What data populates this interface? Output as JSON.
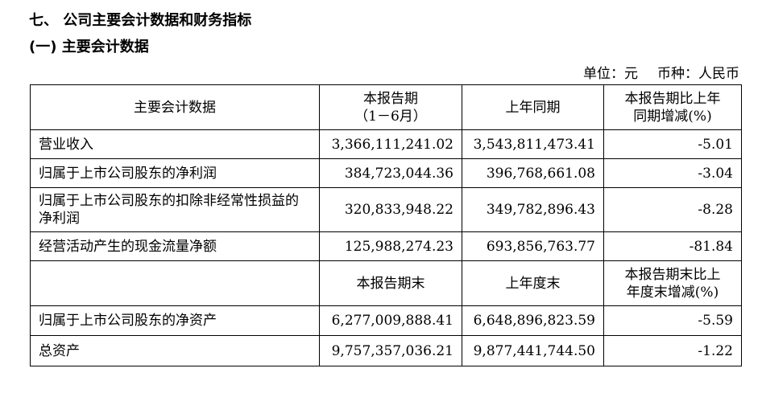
{
  "headings": {
    "section": "七、 公司主要会计数据和财务指标",
    "subsection": "(一) 主要会计数据"
  },
  "unit_line": {
    "unit": "单位：元",
    "currency": "币种：人民币"
  },
  "table": {
    "header1": {
      "col_label": "主要会计数据",
      "col_current_line1": "本报告期",
      "col_current_line2": "（1－6月）",
      "col_prior": "上年同期",
      "col_change_line1": "本报告期比上年",
      "col_change_line2": "同期增减(%)"
    },
    "rows1": [
      {
        "label": "营业收入",
        "current": "3,366,111,241.02",
        "prior": "3,543,811,473.41",
        "change": "-5.01"
      },
      {
        "label": "归属于上市公司股东的净利润",
        "current": "384,723,044.36",
        "prior": "396,768,661.08",
        "change": "-3.04"
      },
      {
        "label": "归属于上市公司股东的扣除非经常性损益的净利润",
        "current": "320,833,948.22",
        "prior": "349,782,896.43",
        "change": "-8.28"
      },
      {
        "label": "经营活动产生的现金流量净额",
        "current": "125,988,274.23",
        "prior": "693,856,763.77",
        "change": "-81.84"
      }
    ],
    "header2": {
      "col_label": "",
      "col_current": "本报告期末",
      "col_prior": "上年度末",
      "col_change_line1": "本报告期末比上",
      "col_change_line2": "年度末增减(%)"
    },
    "rows2": [
      {
        "label": "归属于上市公司股东的净资产",
        "current": "6,277,009,888.41",
        "prior": "6,648,896,823.59",
        "change": "-5.59"
      },
      {
        "label": "总资产",
        "current": "9,757,357,036.21",
        "prior": "9,877,441,744.50",
        "change": "-1.22"
      }
    ]
  }
}
